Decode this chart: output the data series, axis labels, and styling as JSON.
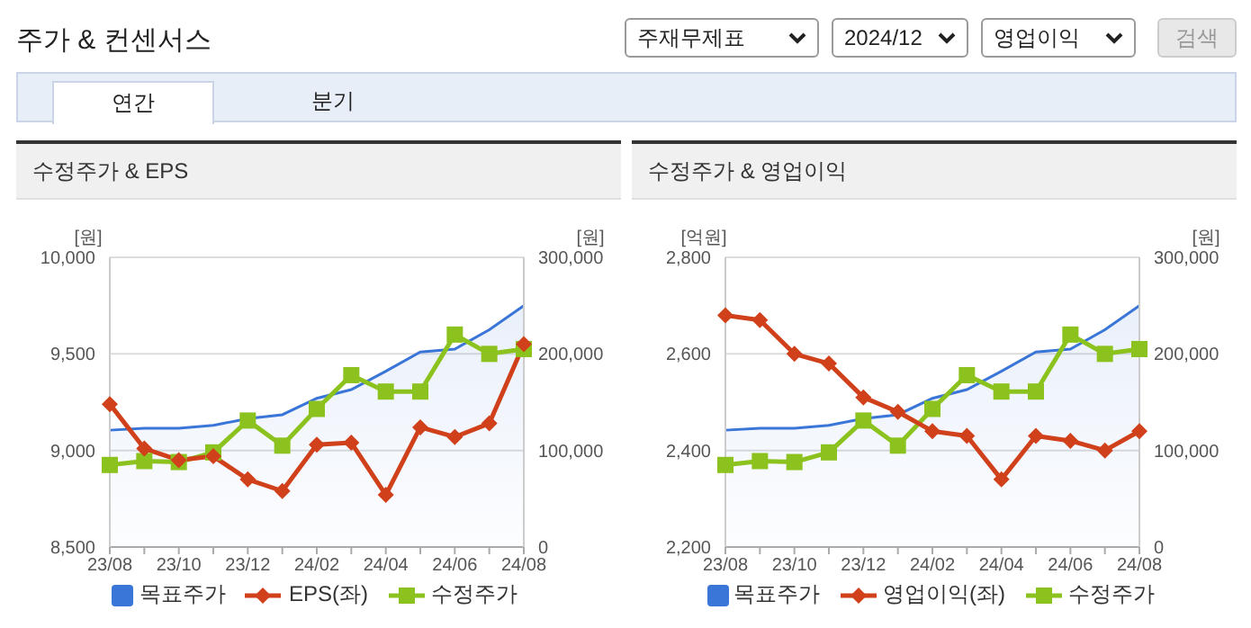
{
  "chart_data": [
    {
      "type": "other",
      "title": "주가 & 컨센서스",
      "annotations": [
        "주재무제표",
        "2024/12",
        "영업이익",
        "검색",
        "연간",
        "분기"
      ]
    },
    {
      "type": "line",
      "title": "수정주가 & EPS",
      "ylabel": "[원]",
      "y2label": "[원]",
      "categories": [
        "23/08",
        null,
        "23/10",
        null,
        "23/12",
        null,
        "24/02",
        null,
        "24/04",
        null,
        "24/06",
        null,
        "24/08"
      ],
      "ylim": [
        8500,
        10000
      ],
      "yticks": [
        {
          "value": 8500,
          "label": "8,500"
        },
        {
          "value": 9000,
          "label": "9,000"
        },
        {
          "value": 9500,
          "label": "9,500"
        },
        {
          "value": 10000,
          "label": "10,000"
        }
      ],
      "y2lim": [
        0,
        300000
      ],
      "y2ticks": [
        0,
        {
          "value": 100000,
          "label": "100,000"
        },
        {
          "value": 200000,
          "label": "200,000"
        },
        {
          "value": 300000,
          "label": "300,000"
        }
      ],
      "grid": "y",
      "legend": "bottom",
      "series": [
        {
          "name": "목표주가",
          "type": "area",
          "axis": "y2",
          "color": "#3a75d8",
          "marker": "none",
          "values": [
            121000,
            123000,
            123000,
            126000,
            133000,
            137000,
            154000,
            163000,
            182000,
            202000,
            205000,
            225000,
            250000
          ]
        },
        {
          "name": "EPS(좌)",
          "type": "line",
          "color": "#d0401b",
          "marker": "diamond",
          "values": [
            9240,
            9010,
            8950,
            8970,
            8850,
            8790,
            9030,
            9040,
            8770,
            9120,
            9070,
            9140,
            9550
          ]
        },
        {
          "name": "수정주가",
          "type": "line",
          "axis": "y2",
          "color": "#8cc21e",
          "marker": "square",
          "values": [
            85000,
            89000,
            88000,
            98000,
            131000,
            105000,
            143000,
            178000,
            161000,
            161000,
            220000,
            200000,
            205000
          ]
        }
      ]
    },
    {
      "type": "line",
      "title": "수정주가 & 영업이익",
      "ylabel": "[억원]",
      "y2label": "[원]",
      "categories": [
        "23/08",
        null,
        "23/10",
        null,
        "23/12",
        null,
        "24/02",
        null,
        "24/04",
        null,
        "24/06",
        null,
        "24/08"
      ],
      "ylim": [
        2200,
        2800
      ],
      "yticks": [
        {
          "value": 2200,
          "label": "2,200"
        },
        {
          "value": 2400,
          "label": "2,400"
        },
        {
          "value": 2600,
          "label": "2,600"
        },
        {
          "value": 2800,
          "label": "2,800"
        }
      ],
      "y2lim": [
        0,
        300000
      ],
      "y2ticks": [
        0,
        {
          "value": 100000,
          "label": "100,000"
        },
        {
          "value": 200000,
          "label": "200,000"
        },
        {
          "value": 300000,
          "label": "300,000"
        }
      ],
      "grid": "y",
      "legend": "bottom",
      "series": [
        {
          "name": "목표주가",
          "type": "area",
          "axis": "y2",
          "color": "#3a75d8",
          "marker": "none",
          "values": [
            121000,
            123000,
            123000,
            126000,
            133000,
            137000,
            154000,
            163000,
            182000,
            202000,
            205000,
            225000,
            250000
          ]
        },
        {
          "name": "영업이익(좌)",
          "type": "line",
          "color": "#d0401b",
          "marker": "diamond",
          "values": [
            2680,
            2670,
            2600,
            2580,
            2510,
            2480,
            2440,
            2430,
            2340,
            2430,
            2420,
            2400,
            2440
          ]
        },
        {
          "name": "수정주가",
          "type": "line",
          "axis": "y2",
          "color": "#8cc21e",
          "marker": "square",
          "values": [
            85000,
            89000,
            88000,
            98000,
            131000,
            105000,
            143000,
            178000,
            161000,
            161000,
            220000,
            200000,
            205000
          ]
        }
      ]
    }
  ]
}
